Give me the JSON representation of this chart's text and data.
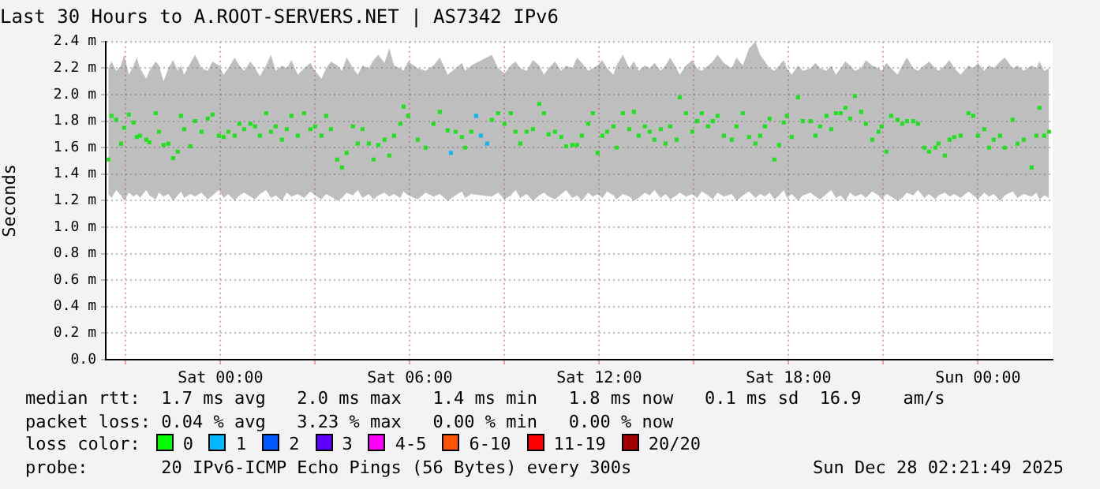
{
  "chart_data": {
    "type": "scatter",
    "title": "Last 30 Hours to A.ROOT-SERVERS.NET | AS7342 IPv6",
    "ylabel": "Seconds",
    "xlim": [
      "2025-12-26T20:22",
      "2025-12-28T02:22"
    ],
    "xticks": [
      {
        "value": "2025-12-26T21:00",
        "label": null
      },
      {
        "value": "2025-12-27T00:00",
        "label": "Sat 00:00"
      },
      {
        "value": "2025-12-27T03:00",
        "label": null
      },
      {
        "value": "2025-12-27T06:00",
        "label": "Sat 06:00"
      },
      {
        "value": "2025-12-27T09:00",
        "label": null
      },
      {
        "value": "2025-12-27T12:00",
        "label": "Sat 12:00"
      },
      {
        "value": "2025-12-27T15:00",
        "label": null
      },
      {
        "value": "2025-12-27T18:00",
        "label": "Sat 18:00"
      },
      {
        "value": "2025-12-27T21:00",
        "label": null
      },
      {
        "value": "2025-12-28T00:00",
        "label": "Sun 00:00"
      }
    ],
    "ylim": [
      0,
      2.4
    ],
    "yticks": [
      {
        "value": 0,
        "label": "0.0"
      },
      {
        "value": 0.2,
        "label": "0.2 m"
      },
      {
        "value": 0.4,
        "label": "0.4 m"
      },
      {
        "value": 0.6,
        "label": "0.6 m"
      },
      {
        "value": 0.8,
        "label": "0.8 m"
      },
      {
        "value": 1.0,
        "label": "1.0 m"
      },
      {
        "value": 1.2,
        "label": "1.2 m"
      },
      {
        "value": 1.4,
        "label": "1.4 m"
      },
      {
        "value": 1.6,
        "label": "1.6 m"
      },
      {
        "value": 1.8,
        "label": "1.8 m"
      },
      {
        "value": 2.0,
        "label": "2.0 m"
      },
      {
        "value": 2.2,
        "label": "2.2 m"
      },
      {
        "value": 2.4,
        "label": "2.4 m"
      }
    ],
    "grid": true,
    "legend": false,
    "marker": "square",
    "series": [
      {
        "color": "#20e020",
        "x": [
          "2025-12-26T20:27",
          "2025-12-26T20:33",
          "2025-12-26T20:42",
          "2025-12-26T20:51",
          "2025-12-26T20:57",
          "2025-12-26T21:06",
          "2025-12-26T21:15",
          "2025-12-26T21:21",
          "2025-12-26T21:27",
          "2025-12-26T21:39",
          "2025-12-26T21:45",
          "2025-12-26T21:57",
          "2025-12-26T22:03",
          "2025-12-26T22:12",
          "2025-12-26T22:21",
          "2025-12-26T22:30",
          "2025-12-26T22:39",
          "2025-12-26T22:45",
          "2025-12-26T22:51",
          "2025-12-26T23:03",
          "2025-12-26T23:12",
          "2025-12-26T23:24",
          "2025-12-26T23:36",
          "2025-12-26T23:45",
          "2025-12-26T23:57",
          "2025-12-27T00:06",
          "2025-12-27T00:15",
          "2025-12-27T00:27",
          "2025-12-27T00:36",
          "2025-12-27T00:45",
          "2025-12-27T00:57",
          "2025-12-27T01:06",
          "2025-12-27T01:15",
          "2025-12-27T01:27",
          "2025-12-27T01:36",
          "2025-12-27T01:45",
          "2025-12-27T01:57",
          "2025-12-27T02:06",
          "2025-12-27T02:15",
          "2025-12-27T02:27",
          "2025-12-27T02:39",
          "2025-12-27T02:51",
          "2025-12-27T03:00",
          "2025-12-27T03:12",
          "2025-12-27T03:21",
          "2025-12-27T03:30",
          "2025-12-27T03:42",
          "2025-12-27T03:51",
          "2025-12-27T04:00",
          "2025-12-27T04:12",
          "2025-12-27T04:21",
          "2025-12-27T04:30",
          "2025-12-27T04:42",
          "2025-12-27T04:51",
          "2025-12-27T05:00",
          "2025-12-27T05:12",
          "2025-12-27T05:21",
          "2025-12-27T05:30",
          "2025-12-27T05:42",
          "2025-12-27T05:48",
          "2025-12-27T05:57",
          "2025-12-27T06:15",
          "2025-12-27T06:30",
          "2025-12-27T06:45",
          "2025-12-27T06:57",
          "2025-12-27T07:12",
          "2025-12-27T07:27",
          "2025-12-27T07:39",
          "2025-12-27T07:45",
          "2025-12-27T07:57",
          "2025-12-27T08:36",
          "2025-12-27T08:48",
          "2025-12-27T09:00",
          "2025-12-27T09:12",
          "2025-12-27T09:21",
          "2025-12-27T09:30",
          "2025-12-27T09:42",
          "2025-12-27T09:54",
          "2025-12-27T10:06",
          "2025-12-27T10:15",
          "2025-12-27T10:24",
          "2025-12-27T10:36",
          "2025-12-27T10:48",
          "2025-12-27T10:57",
          "2025-12-27T11:09",
          "2025-12-27T11:18",
          "2025-12-27T11:27",
          "2025-12-27T11:39",
          "2025-12-27T11:48",
          "2025-12-27T11:57",
          "2025-12-27T12:06",
          "2025-12-27T12:15",
          "2025-12-27T12:27",
          "2025-12-27T12:33",
          "2025-12-27T12:45",
          "2025-12-27T12:57",
          "2025-12-27T13:06",
          "2025-12-27T13:15",
          "2025-12-27T13:27",
          "2025-12-27T13:36",
          "2025-12-27T13:45",
          "2025-12-27T13:57",
          "2025-12-27T14:06",
          "2025-12-27T14:15",
          "2025-12-27T14:27",
          "2025-12-27T14:33",
          "2025-12-27T14:45",
          "2025-12-27T14:57",
          "2025-12-27T15:06",
          "2025-12-27T15:15",
          "2025-12-27T15:27",
          "2025-12-27T15:36",
          "2025-12-27T15:45",
          "2025-12-27T15:57",
          "2025-12-27T16:12",
          "2025-12-27T16:21",
          "2025-12-27T16:33",
          "2025-12-27T16:45",
          "2025-12-27T16:57",
          "2025-12-27T17:06",
          "2025-12-27T17:15",
          "2025-12-27T17:24",
          "2025-12-27T17:33",
          "2025-12-27T17:42",
          "2025-12-27T17:51",
          "2025-12-27T17:57",
          "2025-12-27T18:06",
          "2025-12-27T18:18",
          "2025-12-27T18:27",
          "2025-12-27T18:42",
          "2025-12-27T18:51",
          "2025-12-27T19:00",
          "2025-12-27T19:12",
          "2025-12-27T19:21",
          "2025-12-27T19:30",
          "2025-12-27T19:39",
          "2025-12-27T19:48",
          "2025-12-27T19:57",
          "2025-12-27T20:06",
          "2025-12-27T20:18",
          "2025-12-27T20:27",
          "2025-12-27T20:39",
          "2025-12-27T20:51",
          "2025-12-27T20:57",
          "2025-12-27T21:06",
          "2025-12-27T21:15",
          "2025-12-27T21:27",
          "2025-12-27T21:36",
          "2025-12-27T21:45",
          "2025-12-27T21:57",
          "2025-12-27T22:06",
          "2025-12-27T22:18",
          "2025-12-27T22:27",
          "2025-12-27T22:39",
          "2025-12-27T22:45",
          "2025-12-27T22:57",
          "2025-12-27T23:06",
          "2025-12-27T23:15",
          "2025-12-27T23:27",
          "2025-12-27T23:42",
          "2025-12-27T23:51",
          "2025-12-28T00:00",
          "2025-12-28T00:12",
          "2025-12-28T00:21",
          "2025-12-28T00:30",
          "2025-12-28T00:42",
          "2025-12-28T00:51",
          "2025-12-28T01:06",
          "2025-12-28T01:15",
          "2025-12-28T01:27",
          "2025-12-28T01:42",
          "2025-12-28T01:51",
          "2025-12-28T01:57",
          "2025-12-28T02:06",
          "2025-12-28T02:15"
        ],
        "values": [
          1.51,
          1.84,
          1.81,
          1.63,
          1.75,
          1.85,
          1.79,
          1.68,
          1.69,
          1.66,
          1.64,
          1.86,
          1.72,
          1.62,
          1.63,
          1.52,
          1.57,
          1.84,
          1.74,
          1.61,
          1.8,
          1.72,
          1.82,
          1.85,
          1.69,
          1.68,
          1.72,
          1.69,
          1.78,
          1.74,
          1.78,
          1.76,
          1.69,
          1.86,
          1.72,
          1.76,
          1.66,
          1.74,
          1.84,
          1.69,
          1.86,
          1.74,
          1.76,
          1.69,
          1.84,
          1.74,
          1.51,
          1.45,
          1.56,
          1.76,
          1.63,
          1.74,
          1.63,
          1.51,
          1.62,
          1.66,
          1.54,
          1.69,
          1.78,
          1.91,
          1.84,
          1.66,
          1.6,
          1.78,
          1.87,
          1.73,
          1.72,
          1.68,
          1.6,
          1.72,
          1.81,
          1.86,
          1.78,
          1.86,
          1.72,
          1.63,
          1.72,
          1.74,
          1.93,
          1.86,
          1.7,
          1.72,
          1.68,
          1.61,
          1.62,
          1.62,
          1.69,
          1.78,
          1.86,
          1.56,
          1.69,
          1.72,
          1.76,
          1.6,
          1.86,
          1.74,
          1.87,
          1.69,
          1.76,
          1.72,
          1.66,
          1.74,
          1.63,
          1.76,
          1.66,
          1.98,
          1.86,
          1.72,
          1.8,
          1.86,
          1.76,
          1.8,
          1.84,
          1.69,
          1.66,
          1.76,
          1.86,
          1.68,
          1.63,
          1.69,
          1.76,
          1.82,
          1.51,
          1.62,
          1.79,
          1.84,
          1.68,
          1.98,
          1.8,
          1.8,
          1.69,
          1.76,
          1.84,
          1.74,
          1.86,
          1.86,
          1.9,
          1.82,
          1.99,
          1.87,
          1.78,
          1.66,
          1.72,
          1.76,
          1.57,
          1.84,
          1.81,
          1.78,
          1.8,
          1.8,
          1.78,
          1.6,
          1.57,
          1.6,
          1.63,
          1.54,
          1.66,
          1.68,
          1.69,
          1.86,
          1.84,
          1.69,
          1.74,
          1.6,
          1.66,
          1.69,
          1.6,
          1.81,
          1.63,
          1.66,
          1.45,
          1.69,
          1.9,
          1.69,
          1.72
        ],
        "upper": [
          2.2,
          2.25,
          2.18,
          2.22,
          2.3,
          2.15,
          2.22,
          2.28,
          2.2,
          2.12,
          2.18,
          2.25,
          2.22,
          2.1,
          2.2,
          2.26,
          2.18,
          2.22,
          2.15,
          2.24,
          2.3,
          2.2,
          2.18,
          2.25,
          2.22,
          2.15,
          2.2,
          2.28,
          2.22,
          2.18,
          2.25,
          2.2,
          2.14,
          2.22,
          2.3,
          2.18,
          2.22,
          2.2,
          2.26,
          2.15,
          2.2,
          2.24,
          2.18,
          2.12,
          2.2,
          2.25,
          2.22,
          2.18,
          2.28,
          2.2,
          2.15,
          2.22,
          2.2,
          2.26,
          2.3,
          2.24,
          2.35,
          2.22,
          2.2,
          2.18,
          2.25,
          2.2,
          2.18,
          2.22,
          2.28,
          2.15,
          2.2,
          2.24,
          2.18,
          2.22,
          2.3,
          2.2,
          2.16,
          2.22,
          2.25,
          2.2,
          2.18,
          2.26,
          2.22,
          2.15,
          2.2,
          2.25,
          2.18,
          2.22,
          2.2,
          2.28,
          2.24,
          2.18,
          2.2,
          2.22,
          2.26,
          2.2,
          2.15,
          2.22,
          2.3,
          2.2,
          2.25,
          2.18,
          2.22,
          2.2,
          2.24,
          2.18,
          2.22,
          2.28,
          2.2,
          2.15,
          2.22,
          2.26,
          2.2,
          2.18,
          2.22,
          2.25,
          2.3,
          2.24,
          2.2,
          2.28,
          2.22,
          2.35,
          2.4,
          2.3,
          2.25,
          2.2,
          2.18,
          2.22,
          2.26,
          2.2,
          2.15,
          2.22,
          2.18,
          2.2,
          2.24,
          2.2,
          2.18,
          2.22,
          2.15,
          2.2,
          2.25,
          2.22,
          2.18,
          2.2,
          2.26,
          2.22,
          2.2,
          2.18,
          2.24,
          2.2,
          2.15,
          2.22,
          2.28,
          2.2,
          2.18,
          2.22,
          2.25,
          2.2,
          2.18,
          2.22,
          2.26,
          2.2,
          2.15,
          2.22,
          2.2,
          2.24,
          2.18,
          2.22,
          2.2,
          2.25,
          2.28,
          2.2,
          2.22,
          2.18,
          2.22,
          2.2,
          2.25,
          2.18,
          2.2
        ],
        "lower": [
          1.25,
          1.22,
          1.28,
          1.24,
          1.2,
          1.26,
          1.23,
          1.25,
          1.22,
          1.28,
          1.24,
          1.21,
          1.26,
          1.23,
          1.25,
          1.2,
          1.24,
          1.27,
          1.22,
          1.25,
          1.23,
          1.26,
          1.21,
          1.24,
          1.28,
          1.22,
          1.25,
          1.2,
          1.24,
          1.26,
          1.23,
          1.21,
          1.25,
          1.28,
          1.22,
          1.24,
          1.2,
          1.26,
          1.23,
          1.25,
          1.22,
          1.27,
          1.24,
          1.21,
          1.25,
          1.23,
          1.2,
          1.22,
          1.26,
          1.24,
          1.28,
          1.22,
          1.25,
          1.21,
          1.24,
          1.26,
          1.23,
          1.25,
          1.22,
          1.27,
          1.24,
          1.21,
          1.26,
          1.23,
          1.25,
          1.2,
          1.24,
          1.27,
          1.22,
          1.25,
          1.23,
          1.26,
          1.21,
          1.24,
          1.28,
          1.22,
          1.25,
          1.2,
          1.24,
          1.26,
          1.23,
          1.21,
          1.25,
          1.28,
          1.22,
          1.24,
          1.2,
          1.26,
          1.23,
          1.25,
          1.22,
          1.27,
          1.24,
          1.21,
          1.25,
          1.23,
          1.2,
          1.22,
          1.26,
          1.24,
          1.28,
          1.22,
          1.25,
          1.21,
          1.24,
          1.26,
          1.23,
          1.25,
          1.22,
          1.27,
          1.24,
          1.21,
          1.26,
          1.23,
          1.25,
          1.2,
          1.24,
          1.27,
          1.22,
          1.25,
          1.23,
          1.26,
          1.21,
          1.24,
          1.28,
          1.22,
          1.25,
          1.2,
          1.24,
          1.26,
          1.23,
          1.21,
          1.25,
          1.28,
          1.22,
          1.24,
          1.2,
          1.26,
          1.23,
          1.25,
          1.22,
          1.27,
          1.24,
          1.21,
          1.25,
          1.23,
          1.2,
          1.22,
          1.26,
          1.24,
          1.28,
          1.22,
          1.25,
          1.21,
          1.24,
          1.26,
          1.23,
          1.25,
          1.22,
          1.27,
          1.24,
          1.21,
          1.26,
          1.23,
          1.25,
          1.2,
          1.24,
          1.27,
          1.22,
          1.25,
          1.23,
          1.26,
          1.21,
          1.24,
          1.22
        ]
      },
      {
        "color": "#10b8f0",
        "x": [
          "2025-12-27T07:18",
          "2025-12-27T08:06",
          "2025-12-27T08:15",
          "2025-12-27T08:27"
        ],
        "values": [
          1.56,
          1.84,
          1.69,
          1.63
        ]
      }
    ],
    "annotations": [
      "median rtt:  1.7 ms avg   2.0 ms max   1.4 ms min   1.8 ms now   0.1 ms sd  16.9    am/s",
      "packet loss: 0.04 % avg   3.23 % max   0.00 % min   0.00 % now",
      "loss color:",
      "0",
      "1",
      "2",
      "3",
      "4-5",
      "6-10",
      "11-19",
      "20/20",
      "probe:       20 IPv6-ICMP Echo Pings (56 Bytes) every 300s",
      "Sun Dec 28 02:21:49 2025"
    ]
  }
}
